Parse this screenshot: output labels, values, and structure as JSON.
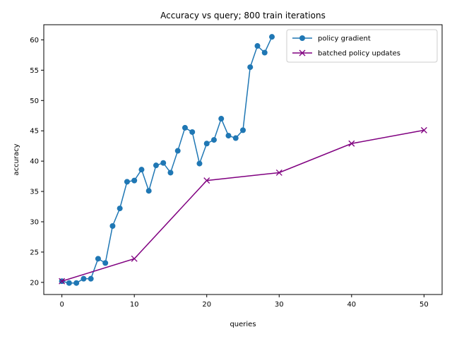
{
  "chart_data": {
    "type": "line",
    "title": "Accuracy vs query; 800 train iterations",
    "xlabel": "queries",
    "ylabel": "accuracy",
    "xlim": [
      -2.5,
      52.5
    ],
    "ylim": [
      18.0,
      62.5
    ],
    "xticks": [
      0,
      10,
      20,
      30,
      40,
      50
    ],
    "yticks": [
      20,
      25,
      30,
      35,
      40,
      45,
      50,
      55,
      60
    ],
    "grid": false,
    "legend_position": "top-right",
    "series": [
      {
        "name": "policy gradient",
        "color": "#1f77b4",
        "marker": "circle",
        "x": [
          0,
          1,
          2,
          3,
          4,
          5,
          6,
          7,
          8,
          9,
          10,
          11,
          12,
          13,
          14,
          15,
          16,
          17,
          18,
          19,
          20,
          21,
          22,
          23,
          24,
          25,
          26,
          27,
          28,
          29
        ],
        "y": [
          20.2,
          19.9,
          19.9,
          20.6,
          20.6,
          23.9,
          23.2,
          29.3,
          32.2,
          36.6,
          36.8,
          38.6,
          35.1,
          39.3,
          39.7,
          38.1,
          41.7,
          45.5,
          44.8,
          39.6,
          42.9,
          43.5,
          47.0,
          44.2,
          43.8,
          45.1,
          55.5,
          59.0,
          57.9,
          60.5
        ]
      },
      {
        "name": "batched policy updates",
        "color": "#800080",
        "marker": "x",
        "x": [
          0,
          10,
          20,
          30,
          40,
          50
        ],
        "y": [
          20.2,
          23.9,
          36.8,
          38.1,
          42.9,
          45.1
        ]
      }
    ]
  }
}
